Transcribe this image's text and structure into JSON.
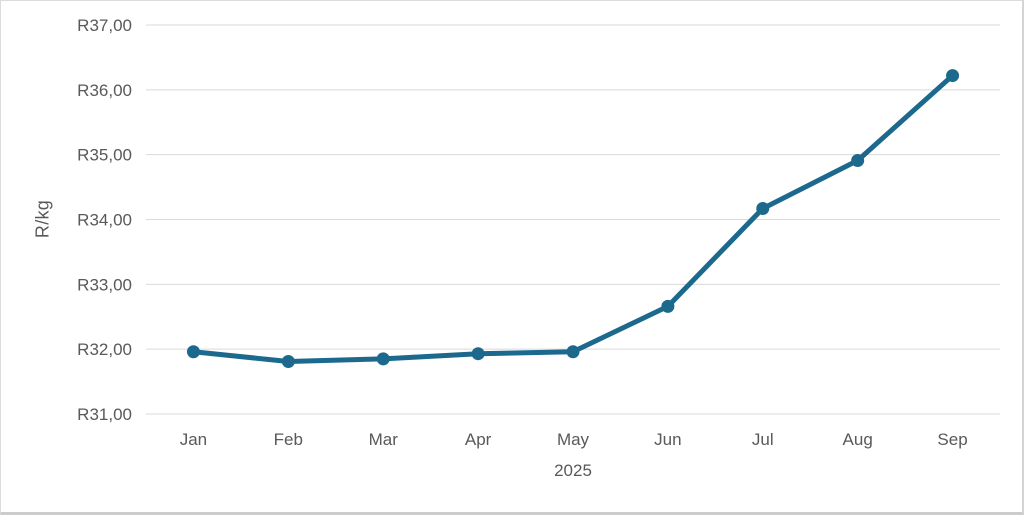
{
  "chart_data": {
    "type": "line",
    "title": "",
    "ylabel": "R/kg",
    "xlabel": "2025",
    "categories": [
      "Jan",
      "Feb",
      "Mar",
      "Apr",
      "May",
      "Jun",
      "Jul",
      "Aug",
      "Sep"
    ],
    "series": [
      {
        "name": "R/kg",
        "values": [
          31.96,
          31.81,
          31.85,
          31.93,
          31.96,
          32.66,
          34.17,
          34.91,
          36.22
        ]
      }
    ],
    "ylim": [
      31,
      37
    ],
    "ytick_step": 1,
    "ytick_labels": [
      "R31,00",
      "R32,00",
      "R33,00",
      "R34,00",
      "R35,00",
      "R36,00",
      "R37,00"
    ],
    "grid": true,
    "legend_position": "none",
    "colors": {
      "line": "#1c698d",
      "marker": "#1c698d",
      "gridline": "#d9d9d9",
      "tick_text": "#595959",
      "frame_border": "#dcdcdc"
    }
  }
}
